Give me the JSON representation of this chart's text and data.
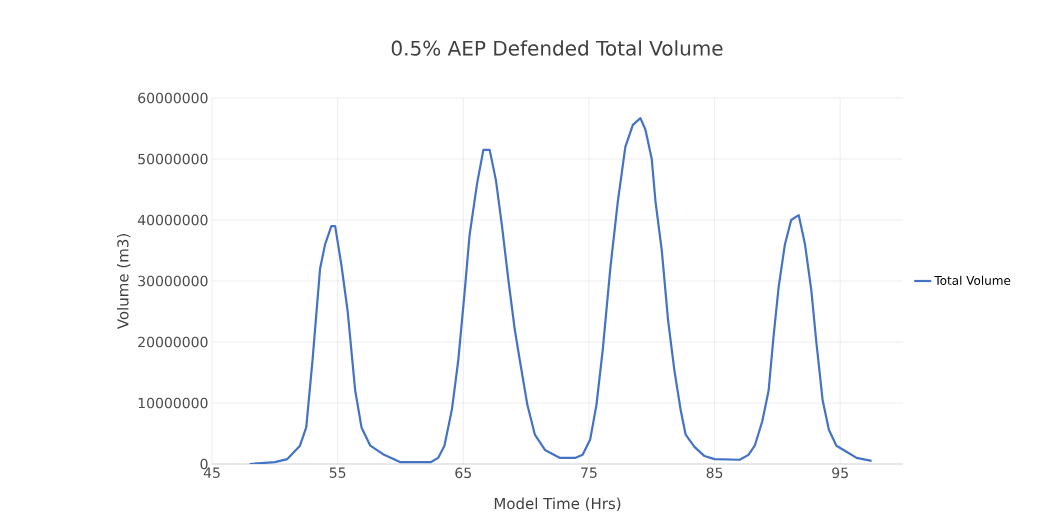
{
  "chart_data": {
    "type": "line",
    "title": "0.5% AEP Defended Total Volume",
    "xlabel": "Model Time (Hrs)",
    "ylabel": "Volume (m3)",
    "xlim": [
      45,
      100
    ],
    "xticks": [
      45,
      55,
      65,
      75,
      85,
      95
    ],
    "ylim": [
      0,
      60000000
    ],
    "yticks": [
      0,
      10000000,
      20000000,
      30000000,
      40000000,
      50000000,
      60000000
    ],
    "grid": true,
    "legend": "right",
    "marker": "none",
    "line_style": "solid",
    "series": [
      {
        "name": "Total Volume",
        "color": "#4472c4",
        "x": [
          48,
          50,
          51,
          52,
          52.5,
          53,
          53.6,
          54,
          54.5,
          54.8,
          55.3,
          55.8,
          56.4,
          56.9,
          57.6,
          58.7,
          60,
          62.4,
          63,
          63.5,
          64.1,
          64.6,
          65.1,
          65.5,
          66.1,
          66.6,
          67.1,
          67.6,
          68.1,
          68.6,
          69.1,
          69.5,
          70.1,
          70.7,
          71.5,
          72.7,
          73.9,
          74.5,
          75.1,
          75.6,
          76.1,
          76.7,
          77.3,
          77.9,
          78.5,
          79.1,
          79.5,
          80,
          80.3,
          80.8,
          81.3,
          81.8,
          82.3,
          82.7,
          83.4,
          84.2,
          85,
          87,
          87.7,
          88.2,
          88.8,
          89.3,
          89.7,
          90.1,
          90.6,
          91.1,
          91.7,
          92.2,
          92.7,
          93.1,
          93.6,
          94.1,
          94.7,
          95.5,
          96.3,
          97.5
        ],
        "values": [
          0,
          300000,
          800000,
          3000000,
          6000000,
          17000000,
          32000000,
          36000000,
          39000000,
          39000000,
          32600000,
          25000000,
          12000000,
          6000000,
          3000000,
          1500000,
          300000,
          300000,
          1000000,
          3000000,
          9000000,
          17000000,
          28000000,
          37500000,
          46000000,
          51500000,
          51500000,
          46500000,
          38700000,
          30000000,
          22000000,
          17000000,
          9700000,
          4800000,
          2300000,
          1000000,
          1000000,
          1500000,
          4000000,
          9700000,
          18700000,
          32000000,
          43000000,
          52000000,
          55600000,
          56700000,
          54800000,
          50000000,
          43000000,
          35000000,
          23600000,
          15400000,
          8900000,
          4800000,
          2800000,
          1300000,
          800000,
          700000,
          1500000,
          3000000,
          7000000,
          12000000,
          21000000,
          29000000,
          36000000,
          40000000,
          40800000,
          36000000,
          28500000,
          20000000,
          10500000,
          5600000,
          3000000,
          2000000,
          1000000,
          500000
        ]
      }
    ]
  }
}
